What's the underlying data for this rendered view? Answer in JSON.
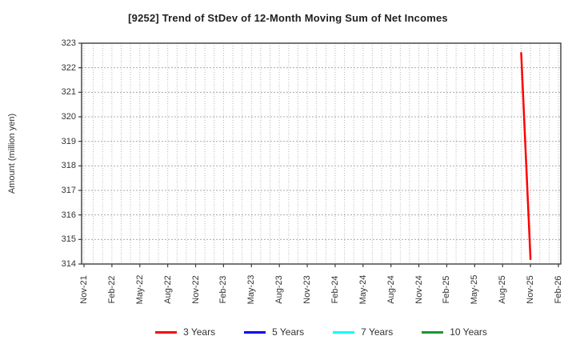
{
  "chart_data": {
    "type": "line",
    "title": "[9252]  Trend of StDev of 12-Month Moving Sum of Net Incomes",
    "ylabel": "Amount (million yen)",
    "xlabel": "",
    "ylim": [
      314,
      323
    ],
    "ytick_step": 1,
    "grid": true,
    "legend_position": "bottom",
    "x_tick_labels": [
      "Nov-21",
      "Feb-22",
      "May-22",
      "Aug-22",
      "Nov-22",
      "Feb-23",
      "May-23",
      "Aug-23",
      "Nov-23",
      "Feb-24",
      "May-24",
      "Aug-24",
      "Nov-24",
      "Feb-25",
      "May-25",
      "Aug-25",
      "Nov-25",
      "Feb-26"
    ],
    "months_per_tick": 3,
    "x_month_span": 51,
    "colors": {
      "axis": "#3c3c3c",
      "grid_vertical": "#b8b8b8",
      "grid_horizontal": "#acacac",
      "tick_text": "#333333"
    },
    "series": [
      {
        "name": "3 Years",
        "color": "#ff0000",
        "points": [
          {
            "month_index": 47,
            "month": "Oct-25",
            "value": 322.6
          },
          {
            "month_index": 48,
            "month": "Nov-25",
            "value": 314.2
          }
        ]
      },
      {
        "name": "5 Years",
        "color": "#0000ff",
        "points": []
      },
      {
        "name": "7 Years",
        "color": "#00ffff",
        "points": []
      },
      {
        "name": "10 Years",
        "color": "#1a9632",
        "points": []
      }
    ]
  }
}
